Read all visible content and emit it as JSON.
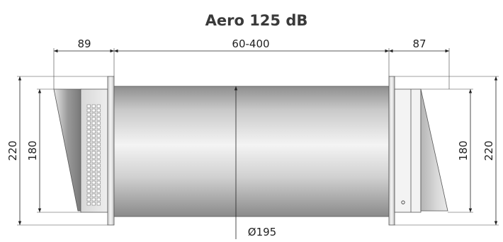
{
  "title": "Aero 125 dB",
  "dimensions": {
    "left_depth": "89",
    "center_length": "60-400",
    "right_depth": "87",
    "left_outer_height": "220",
    "left_inner_height": "180",
    "right_inner_height": "180",
    "right_outer_height": "220",
    "diameter": "Ø195"
  },
  "colors": {
    "line": "#222222",
    "tube_light": "#f2f2f2",
    "tube_dark": "#8c8c8c"
  }
}
